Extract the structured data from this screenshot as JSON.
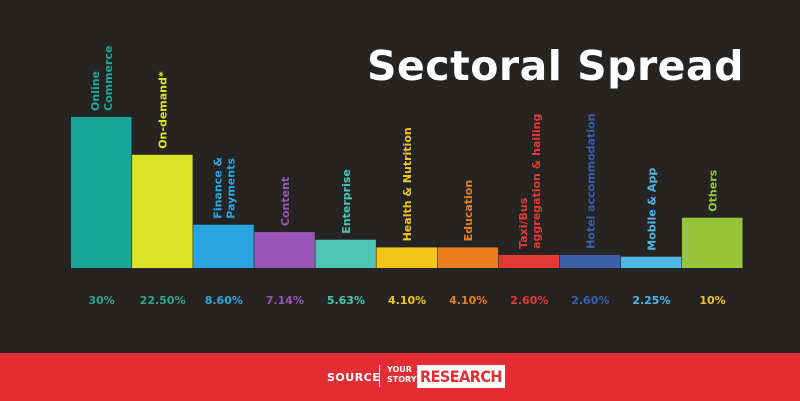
{
  "title": "Sectoral Spread",
  "footer": {
    "source_label": "SOURCE",
    "brand_line1": "YOUR",
    "brand_line2": "STORY",
    "brand_research": "RESEARCH"
  },
  "chart_data": {
    "type": "bar",
    "title": "Sectoral Spread",
    "ylim": [
      0,
      30
    ],
    "grid": false,
    "legend": "none",
    "categories": [
      [
        "Online",
        "Commerce"
      ],
      [
        "On-demand*"
      ],
      [
        "Finance &",
        "Payments"
      ],
      [
        "Content"
      ],
      [
        "Enterprise"
      ],
      [
        "Health & Nutrition"
      ],
      [
        "Education"
      ],
      [
        "Taxi/Bus",
        "aggregation & hailing"
      ],
      [
        "Hotel accommodation"
      ],
      [
        "Mobile & App"
      ],
      [
        "Others"
      ]
    ],
    "values": [
      30,
      22.5,
      8.6,
      7.14,
      5.63,
      4.1,
      4.1,
      2.6,
      2.6,
      2.25,
      10
    ],
    "value_labels": [
      "30%",
      "22.50%",
      "8.60%",
      "7.14%",
      "5.63%",
      "4.10%",
      "4.10%",
      "2.60%",
      "2.60%",
      "2.25%",
      "10%"
    ],
    "bar_colors": [
      "#17a89a",
      "#dce22a",
      "#2ba5e0",
      "#9a54b5",
      "#4ec4b5",
      "#f2c51a",
      "#ea7f22",
      "#e43a36",
      "#3c5fac",
      "#4fb7e3",
      "#97c53a"
    ],
    "label_colors": [
      "#17a89a",
      "#dce22a",
      "#2ba5e0",
      "#9a54b5",
      "#4ec4b5",
      "#f2c51a",
      "#ea7f22",
      "#e43a36",
      "#3c5fac",
      "#4fb7e3",
      "#97c53a"
    ],
    "value_label_colors": [
      "#2fa58e",
      "#2fa58e",
      "#2ba5e0",
      "#9a54b5",
      "#4ec4b5",
      "#f2c51a",
      "#ea7f22",
      "#e43a36",
      "#3c5fac",
      "#4fb7e3",
      "#f2c51a"
    ]
  }
}
